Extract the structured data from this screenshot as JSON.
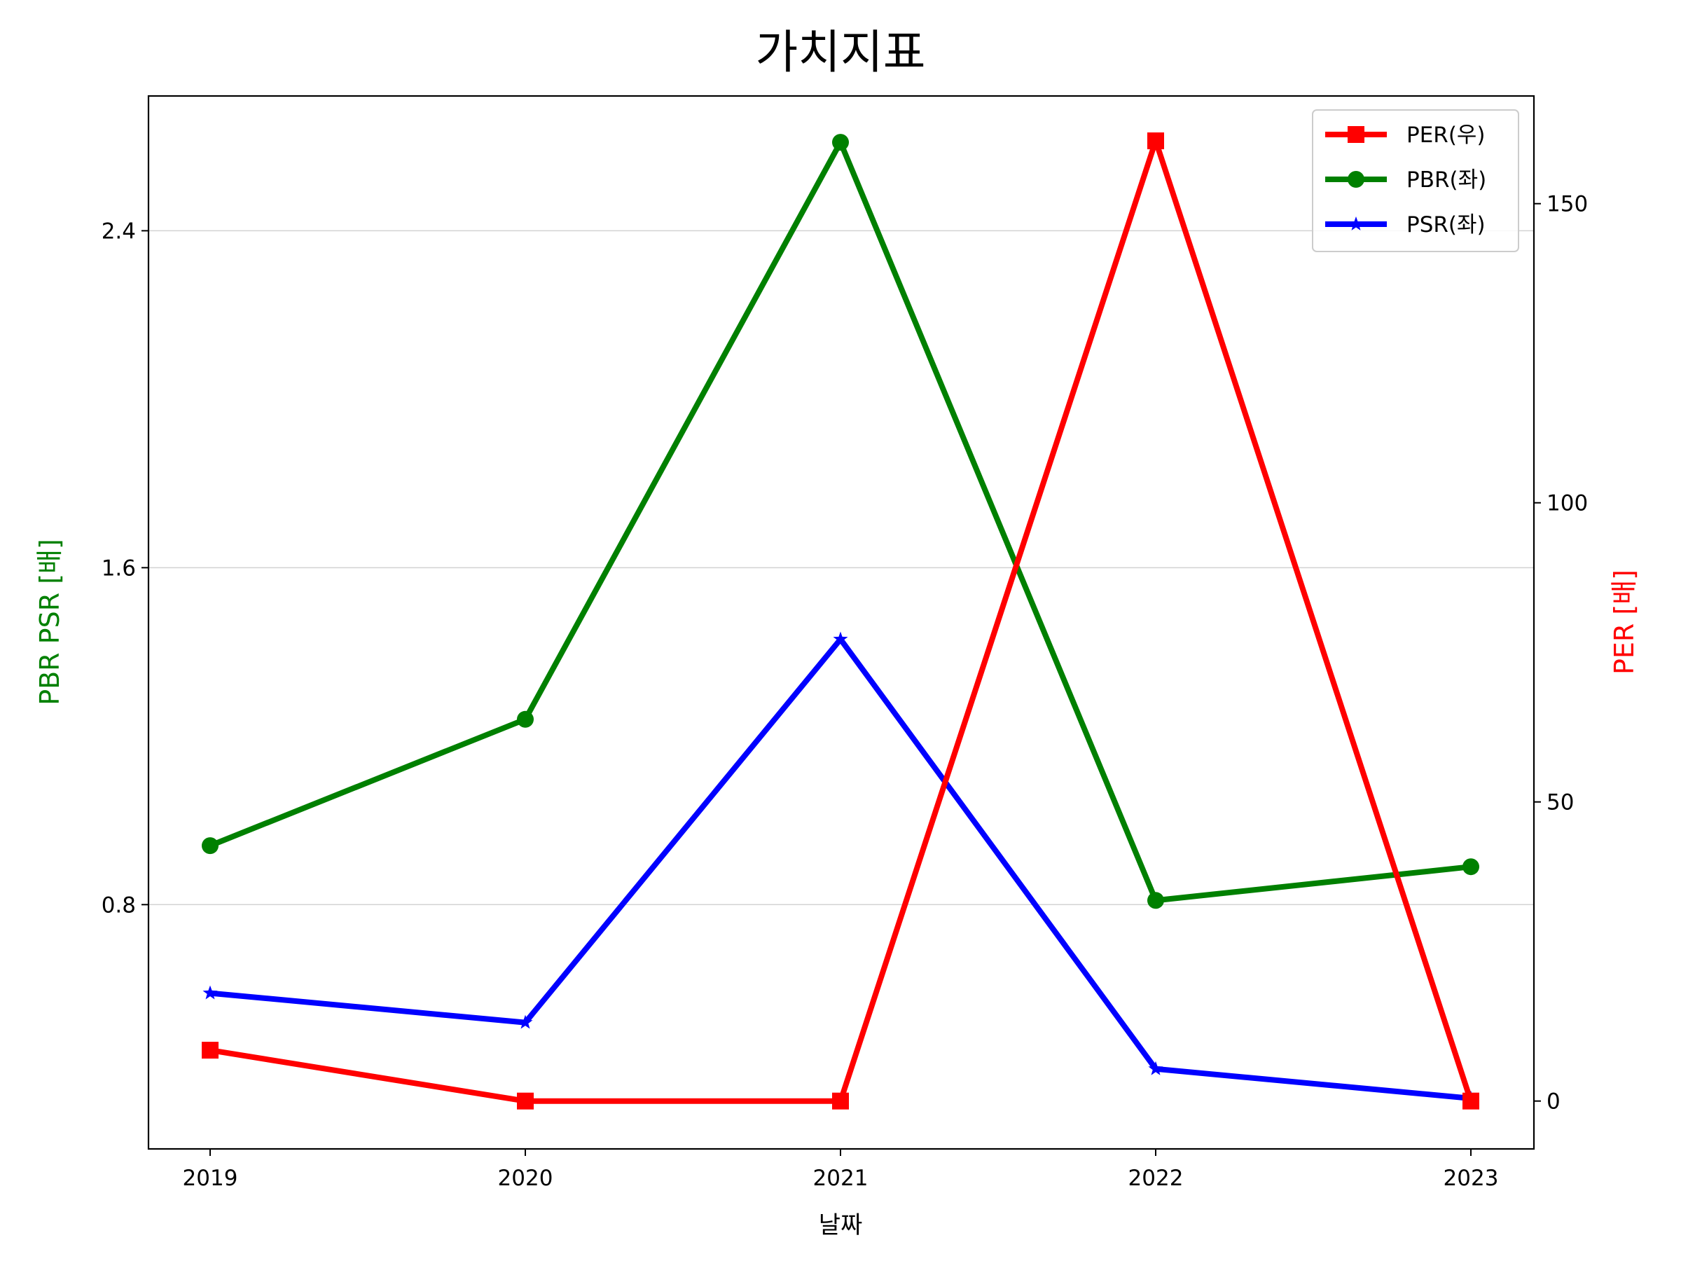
{
  "chart_data": {
    "type": "line",
    "title": "가치지표",
    "xlabel": "날짜",
    "ylabel_left": "PBR PSR [배]",
    "ylabel_right": "PER [배]",
    "categories": [
      "2019",
      "2020",
      "2021",
      "2022",
      "2023"
    ],
    "left_axis": {
      "ylim": [
        0.22,
        2.72
      ],
      "ticks": [
        0.8,
        1.6,
        2.4
      ],
      "tick_labels": [
        "0.8",
        "1.6",
        "2.4"
      ],
      "grid": true
    },
    "right_axis": {
      "ylim": [
        -8,
        168
      ],
      "ticks": [
        0,
        50,
        100,
        150
      ],
      "tick_labels": [
        "0",
        "50",
        "100",
        "150"
      ]
    },
    "series": [
      {
        "name": "PER(우)",
        "axis": "right",
        "marker": "square",
        "color": "#ff0000",
        "values": [
          8.5,
          0,
          0,
          160.5,
          0
        ]
      },
      {
        "name": "PBR(좌)",
        "axis": "left",
        "marker": "circle",
        "color": "#008000",
        "values": [
          0.94,
          1.24,
          2.61,
          0.81,
          0.89
        ]
      },
      {
        "name": "PSR(좌)",
        "axis": "left",
        "marker": "star",
        "color": "#0000ff",
        "values": [
          0.59,
          0.52,
          1.43,
          0.41,
          0.34
        ]
      }
    ],
    "legend": {
      "position": "top-right"
    },
    "colors": {
      "left_label": "#008000",
      "right_label": "#ff0000",
      "grid": "#d3d3d3"
    }
  }
}
